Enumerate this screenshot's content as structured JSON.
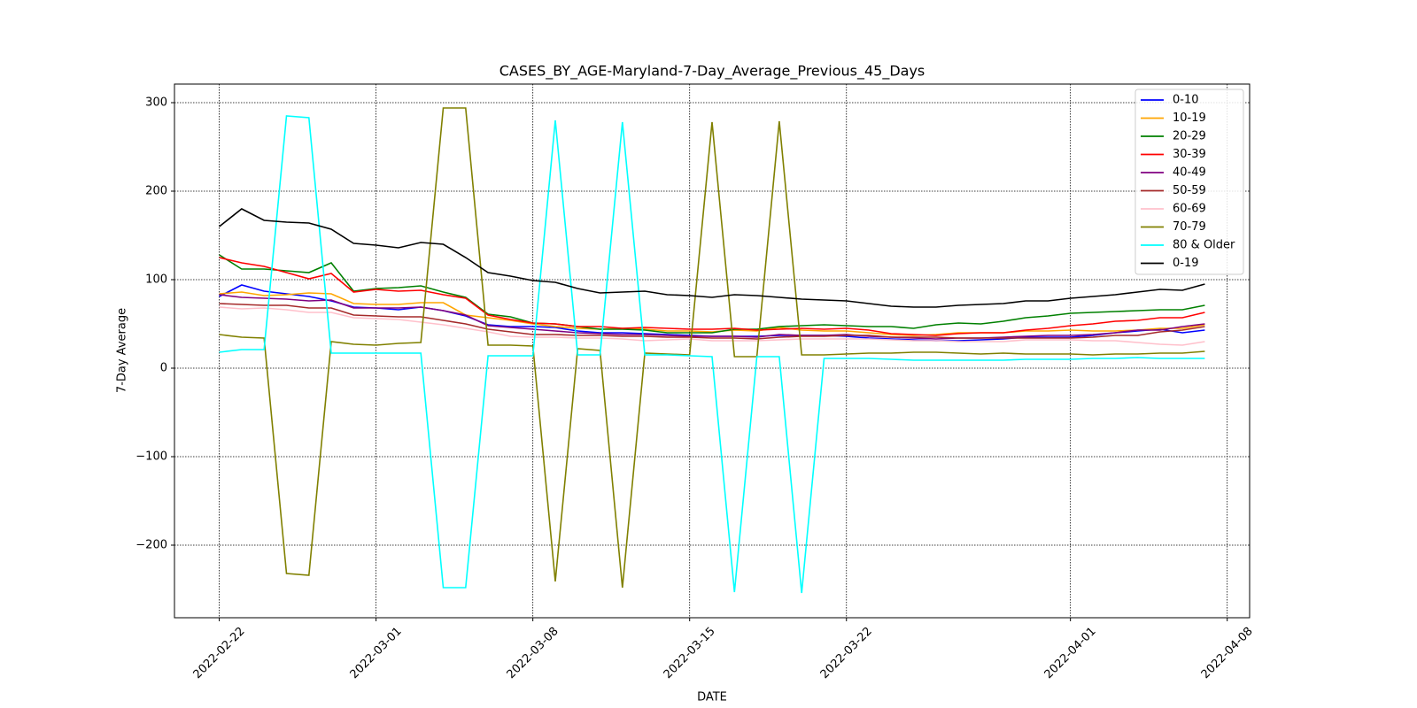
{
  "chart_data": {
    "type": "line",
    "title": "CASES_BY_AGE-Maryland-7-Day_Average_Previous_45_Days",
    "xlabel": "DATE",
    "ylabel": "7-Day Average",
    "x": [
      "2022-02-22",
      "2022-02-23",
      "2022-02-24",
      "2022-02-25",
      "2022-02-26",
      "2022-02-27",
      "2022-02-28",
      "2022-03-01",
      "2022-03-02",
      "2022-03-03",
      "2022-03-04",
      "2022-03-05",
      "2022-03-06",
      "2022-03-07",
      "2022-03-08",
      "2022-03-09",
      "2022-03-10",
      "2022-03-11",
      "2022-03-12",
      "2022-03-13",
      "2022-03-14",
      "2022-03-15",
      "2022-03-16",
      "2022-03-17",
      "2022-03-18",
      "2022-03-19",
      "2022-03-20",
      "2022-03-21",
      "2022-03-22",
      "2022-03-23",
      "2022-03-24",
      "2022-03-25",
      "2022-03-26",
      "2022-03-27",
      "2022-03-28",
      "2022-03-29",
      "2022-03-30",
      "2022-03-31",
      "2022-04-01",
      "2022-04-02",
      "2022-04-03",
      "2022-04-04",
      "2022-04-05",
      "2022-04-06",
      "2022-04-07"
    ],
    "xlim": [
      "2022-02-20",
      "2022-04-09"
    ],
    "xticks": [
      "2022-02-22",
      "2022-03-01",
      "2022-03-08",
      "2022-03-15",
      "2022-03-22",
      "2022-04-01",
      "2022-04-08"
    ],
    "ylim": [
      -282,
      321
    ],
    "yticks": [
      {
        "value": -200,
        "label": "−200"
      },
      {
        "value": -100,
        "label": "−100"
      },
      0,
      100,
      200,
      300
    ],
    "grid": true,
    "legend": "upper right",
    "series": [
      {
        "name": "0-10",
        "color": "#0000ff",
        "values": [
          81,
          94,
          87,
          84,
          81,
          76,
          69,
          68,
          66,
          69,
          65,
          59,
          49,
          47,
          47,
          46,
          42,
          40,
          40,
          39,
          38,
          37,
          36,
          36,
          36,
          37,
          37,
          37,
          36,
          34,
          33,
          32,
          31,
          31,
          32,
          33,
          35,
          35,
          35,
          37,
          40,
          42,
          44,
          40,
          43
        ]
      },
      {
        "name": "10-19",
        "color": "#ffa500",
        "values": [
          84,
          86,
          82,
          83,
          85,
          84,
          73,
          72,
          72,
          74,
          74,
          60,
          57,
          54,
          50,
          47,
          45,
          44,
          45,
          44,
          42,
          42,
          41,
          43,
          42,
          46,
          43,
          42,
          42,
          40,
          38,
          37,
          38,
          40,
          40,
          40,
          42,
          42,
          43,
          42,
          42,
          43,
          45,
          45,
          49
        ]
      },
      {
        "name": "20-29",
        "color": "#008000",
        "values": [
          128,
          112,
          112,
          110,
          108,
          119,
          87,
          90,
          91,
          93,
          86,
          80,
          61,
          58,
          51,
          50,
          47,
          44,
          44,
          43,
          40,
          40,
          40,
          44,
          44,
          47,
          48,
          49,
          48,
          47,
          47,
          45,
          49,
          51,
          50,
          53,
          57,
          59,
          62,
          63,
          64,
          65,
          66,
          66,
          71
        ]
      },
      {
        "name": "30-39",
        "color": "#ff0000",
        "values": [
          125,
          119,
          115,
          108,
          101,
          107,
          86,
          89,
          87,
          88,
          83,
          79,
          60,
          55,
          51,
          50,
          47,
          47,
          45,
          46,
          45,
          44,
          44,
          45,
          43,
          44,
          45,
          44,
          45,
          43,
          39,
          38,
          37,
          39,
          40,
          40,
          43,
          45,
          48,
          50,
          53,
          54,
          57,
          57,
          63
        ]
      },
      {
        "name": "40-49",
        "color": "#800080",
        "values": [
          83,
          80,
          79,
          78,
          76,
          77,
          68,
          68,
          68,
          69,
          65,
          60,
          48,
          46,
          44,
          42,
          40,
          39,
          38,
          38,
          37,
          36,
          36,
          36,
          35,
          38,
          37,
          37,
          38,
          36,
          35,
          34,
          33,
          34,
          34,
          35,
          36,
          37,
          37,
          38,
          40,
          43,
          43,
          47,
          50
        ]
      },
      {
        "name": "50-59",
        "color": "#a52a2a",
        "values": [
          73,
          72,
          71,
          71,
          68,
          68,
          60,
          59,
          58,
          58,
          54,
          50,
          44,
          41,
          38,
          38,
          37,
          37,
          36,
          36,
          35,
          35,
          34,
          34,
          33,
          35,
          36,
          36,
          37,
          37,
          35,
          35,
          35,
          34,
          34,
          34,
          34,
          34,
          34,
          35,
          37,
          37,
          41,
          43,
          47
        ]
      },
      {
        "name": "60-69",
        "color": "#ffc0cb",
        "values": [
          69,
          67,
          68,
          66,
          63,
          63,
          57,
          56,
          55,
          52,
          49,
          45,
          41,
          36,
          35,
          35,
          34,
          34,
          33,
          31,
          32,
          33,
          31,
          31,
          31,
          32,
          33,
          33,
          33,
          33,
          32,
          31,
          31,
          30,
          30,
          30,
          32,
          32,
          32,
          31,
          31,
          29,
          27,
          26,
          30
        ]
      },
      {
        "name": "70-79",
        "color": "#808000",
        "values": [
          38,
          35,
          34,
          -232,
          -234,
          30,
          27,
          26,
          28,
          29,
          294,
          294,
          26,
          26,
          25,
          -241,
          22,
          20,
          -248,
          17,
          16,
          15,
          278,
          13,
          13,
          279,
          15,
          15,
          16,
          17,
          17,
          18,
          18,
          17,
          16,
          17,
          16,
          16,
          16,
          15,
          16,
          16,
          17,
          17,
          19
        ]
      },
      {
        "name": "80 & Older",
        "color": "#00ffff",
        "values": [
          18,
          21,
          21,
          285,
          283,
          17,
          17,
          17,
          17,
          17,
          -248,
          -248,
          14,
          14,
          14,
          280,
          15,
          15,
          278,
          15,
          15,
          14,
          13,
          -253,
          13,
          13,
          -254,
          11,
          11,
          11,
          10,
          9,
          9,
          9,
          9,
          9,
          10,
          10,
          10,
          11,
          11,
          12,
          11,
          11,
          11
        ]
      },
      {
        "name": "0-19",
        "color": "#000000",
        "values": [
          160,
          180,
          167,
          165,
          164,
          157,
          141,
          139,
          136,
          142,
          140,
          125,
          108,
          104,
          99,
          97,
          90,
          85,
          86,
          87,
          83,
          82,
          80,
          83,
          82,
          80,
          78,
          77,
          76,
          73,
          70,
          69,
          69,
          71,
          72,
          73,
          76,
          76,
          79,
          81,
          83,
          86,
          89,
          88,
          95
        ]
      }
    ]
  }
}
